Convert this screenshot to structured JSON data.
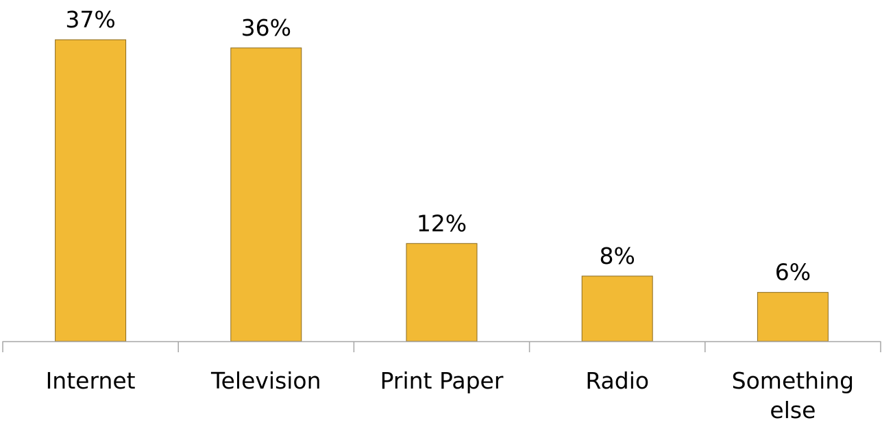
{
  "chart_data": {
    "type": "bar",
    "categories": [
      [
        "Internet"
      ],
      [
        "Television"
      ],
      [
        "Print Paper"
      ],
      [
        "Radio"
      ],
      [
        "Something",
        "else"
      ]
    ],
    "values": [
      37,
      36,
      12,
      8,
      6
    ],
    "value_labels": [
      "37%",
      "36%",
      "12%",
      "8%",
      "6%"
    ],
    "title": "",
    "xlabel": "",
    "ylabel": "",
    "ylim": [
      0,
      37
    ],
    "grid": false,
    "legend": "none",
    "bar_color": "#F2BA35",
    "bar_outline_color": "#8A6A1E",
    "axis_color": "#A6A6A6"
  }
}
